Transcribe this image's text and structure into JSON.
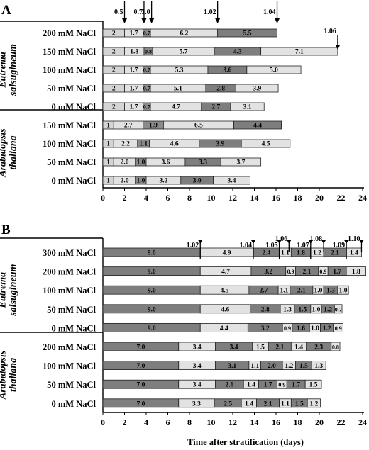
{
  "chart_data": [
    {
      "panel": "A",
      "type": "bar",
      "stacked": true,
      "orientation": "horizontal",
      "xlabel": "",
      "xlim": [
        0,
        24
      ],
      "xticks": [
        0,
        2,
        4,
        6,
        8,
        10,
        12,
        14,
        16,
        18,
        20,
        22,
        24
      ],
      "groups": [
        {
          "name": "Eutrema salsugineum",
          "name_lines": [
            "Eutrema",
            "salsugineum"
          ],
          "rows": [
            0,
            1,
            2,
            3,
            4
          ]
        },
        {
          "name": "Arabidopsis thaliana",
          "name_lines": [
            "Arabidopsis",
            "thaliana"
          ],
          "rows": [
            5,
            6,
            7,
            8
          ]
        }
      ],
      "rows": [
        {
          "label": "200 mM NaCl",
          "segments": [
            2,
            1.7,
            0.7,
            6.2,
            5.5
          ],
          "labels": [
            "2",
            "1.7",
            "0.7",
            "6.2",
            "5.5"
          ]
        },
        {
          "label": "150 mM NaCl",
          "segments": [
            2,
            1.8,
            0.8,
            5.7,
            4.3,
            7.1
          ],
          "labels": [
            "2",
            "1.8",
            "0.8",
            "5.7",
            "4.3",
            "7.1"
          ]
        },
        {
          "label": "100 mM NaCl",
          "segments": [
            2,
            1.7,
            0.7,
            5.3,
            3.6,
            5.0
          ],
          "labels": [
            "2",
            "1.7",
            "0.7",
            "5.3",
            "3.6",
            "5.0"
          ]
        },
        {
          "label": "50 mM NaCl",
          "segments": [
            2,
            1.7,
            0.7,
            5.1,
            2.8,
            3.9
          ],
          "labels": [
            "2",
            "1.7",
            "0.7",
            "5.1",
            "2.8",
            "3.9"
          ]
        },
        {
          "label": "0 mM NaCl",
          "segments": [
            2,
            1.7,
            0.7,
            4.7,
            2.7,
            3.1
          ],
          "labels": [
            "2",
            "1.7",
            "0.7",
            "4.7",
            "2.7",
            "3.1"
          ]
        },
        {
          "label": "150 mM NaCl",
          "segments": [
            1,
            2.7,
            1.9,
            6.5,
            4.4
          ],
          "labels": [
            "1",
            "2.7",
            "1.9",
            "6.5",
            "4.4"
          ]
        },
        {
          "label": "100 mM NaCl",
          "segments": [
            1,
            2.2,
            1.1,
            4.6,
            3.9,
            4.5
          ],
          "labels": [
            "1",
            "2.2",
            "1.1",
            "4.6",
            "3.9",
            "4.5"
          ]
        },
        {
          "label": "50 mM NaCl",
          "segments": [
            1,
            2.0,
            1.0,
            3.6,
            3.3,
            3.7
          ],
          "labels": [
            "1",
            "2.0",
            "1.0",
            "3.6",
            "3.3",
            "3.7"
          ]
        },
        {
          "label": "0 mM NaCl",
          "segments": [
            1,
            2.0,
            1.0,
            3.2,
            3.0,
            3.4
          ],
          "labels": [
            "1",
            "2.0",
            "1.0",
            "3.2",
            "3.0",
            "3.4"
          ]
        }
      ],
      "segment_colors": [
        "#d4d4d4",
        "#e2e2e2",
        "#8a8a8a",
        "#e2e2e2",
        "#7e7e7e",
        "#e2e2e2"
      ],
      "stage_arrows": [
        {
          "label": "0.5",
          "x": 2.0
        },
        {
          "label": "0.7",
          "x": 3.8
        },
        {
          "label": "1.0",
          "x": 4.5
        },
        {
          "label": "1.02",
          "x": 10.6
        },
        {
          "label": "1.04",
          "x": 16.1
        },
        {
          "label": "1.06",
          "x": 21.7
        }
      ]
    },
    {
      "panel": "B",
      "type": "bar",
      "stacked": true,
      "orientation": "horizontal",
      "xlabel": "Time after stratification (days)",
      "xlim": [
        0,
        24
      ],
      "xticks": [
        0,
        2,
        4,
        6,
        8,
        10,
        12,
        14,
        16,
        18,
        20,
        22,
        24
      ],
      "groups": [
        {
          "name": "Eutrema salsugineum",
          "name_lines": [
            "Eutrema",
            "salsugineum"
          ],
          "rows": [
            0,
            1,
            2,
            3,
            4
          ]
        },
        {
          "name": "Arabidopsis thaliana",
          "name_lines": [
            "Arabidopsis",
            "thaliana"
          ],
          "rows": [
            5,
            6,
            7,
            8
          ]
        }
      ],
      "rows": [
        {
          "label": "300 mM NaCl",
          "segments": [
            9.0,
            4.9,
            2.4,
            1.1,
            1.8,
            1.2,
            2.1,
            1.4
          ],
          "labels": [
            "9.0",
            "4.9",
            "2.4",
            "1.1",
            "1.8",
            "1.2",
            "2.1",
            "1.4"
          ]
        },
        {
          "label": "200 mM NaCl",
          "segments": [
            9.0,
            4.7,
            3.2,
            0.9,
            2.1,
            0.9,
            1.7,
            1.8
          ],
          "labels": [
            "9.0",
            "4.7",
            "3.2",
            "0.9",
            "2.1",
            "0.9",
            "1.7",
            "1.8"
          ]
        },
        {
          "label": "100 mM NaCl",
          "segments": [
            9.0,
            4.5,
            2.7,
            1.1,
            2.1,
            1.0,
            1.3,
            1.0
          ],
          "labels": [
            "9.0",
            "4.5",
            "2.7",
            "1.1",
            "2.1",
            "1.0",
            "1.3",
            "1.0"
          ]
        },
        {
          "label": "50 mM NaCl",
          "segments": [
            9.0,
            4.6,
            2.8,
            1.3,
            1.5,
            1.0,
            1.2,
            0.7
          ],
          "labels": [
            "9.0",
            "4.6",
            "2.8",
            "1.3",
            "1.5",
            "1.0",
            "1.2",
            "0.7"
          ]
        },
        {
          "label": "0 mM NaCl",
          "segments": [
            9.0,
            4.4,
            3.2,
            0.9,
            1.6,
            1.0,
            1.2,
            0.9
          ],
          "labels": [
            "9.0",
            "4.4",
            "3.2",
            "0.9",
            "1.6",
            "1.0",
            "1.2",
            "0.9"
          ]
        },
        {
          "label": "200 mM NaCl",
          "segments": [
            7.0,
            3.4,
            3.4,
            1.5,
            2.1,
            1.4,
            2.3,
            0.8
          ],
          "labels": [
            "7.0",
            "3.4",
            "3.4",
            "1.5",
            "2.1",
            "1.4",
            "2.3",
            "0.8"
          ]
        },
        {
          "label": "100 mM NaCl",
          "segments": [
            7.0,
            3.4,
            3.1,
            1.1,
            2.0,
            1.2,
            1.5,
            1.3
          ],
          "labels": [
            "7.0",
            "3.4",
            "3.1",
            "1.1",
            "2.0",
            "1.2",
            "1.5",
            "1.3"
          ]
        },
        {
          "label": "50 mM NaCl",
          "segments": [
            7.0,
            3.4,
            2.6,
            1.4,
            1.7,
            0.9,
            1.7,
            1.5
          ],
          "labels": [
            "7.0",
            "3.4",
            "2.6",
            "1.4",
            "1.7",
            "0.9",
            "1.7",
            "1.5"
          ]
        },
        {
          "label": "0 mM NaCl",
          "segments": [
            7.0,
            3.3,
            2.5,
            1.4,
            2.1,
            1.1,
            1.5,
            1.2
          ],
          "labels": [
            "7.0",
            "3.3",
            "2.5",
            "1.4",
            "2.1",
            "1.1",
            "1.5",
            "1.2"
          ]
        }
      ],
      "segment_colors": [
        "#7e7e7e",
        "#e2e2e2",
        "#7e7e7e",
        "#e2e2e2",
        "#7e7e7e",
        "#e2e2e2",
        "#7e7e7e",
        "#e2e2e2"
      ],
      "stage_arrows": [
        {
          "label": "1.02",
          "x": 9.0
        },
        {
          "label": "1.04",
          "x": 13.9
        },
        {
          "label": "1.05",
          "x": 16.3
        },
        {
          "label": "1.06",
          "x": 17.2
        },
        {
          "label": "1.07",
          "x": 19.2
        },
        {
          "label": "1.08",
          "x": 20.4
        },
        {
          "label": "1.09",
          "x": 22.5
        },
        {
          "label": "1.10",
          "x": 23.9
        }
      ]
    }
  ]
}
